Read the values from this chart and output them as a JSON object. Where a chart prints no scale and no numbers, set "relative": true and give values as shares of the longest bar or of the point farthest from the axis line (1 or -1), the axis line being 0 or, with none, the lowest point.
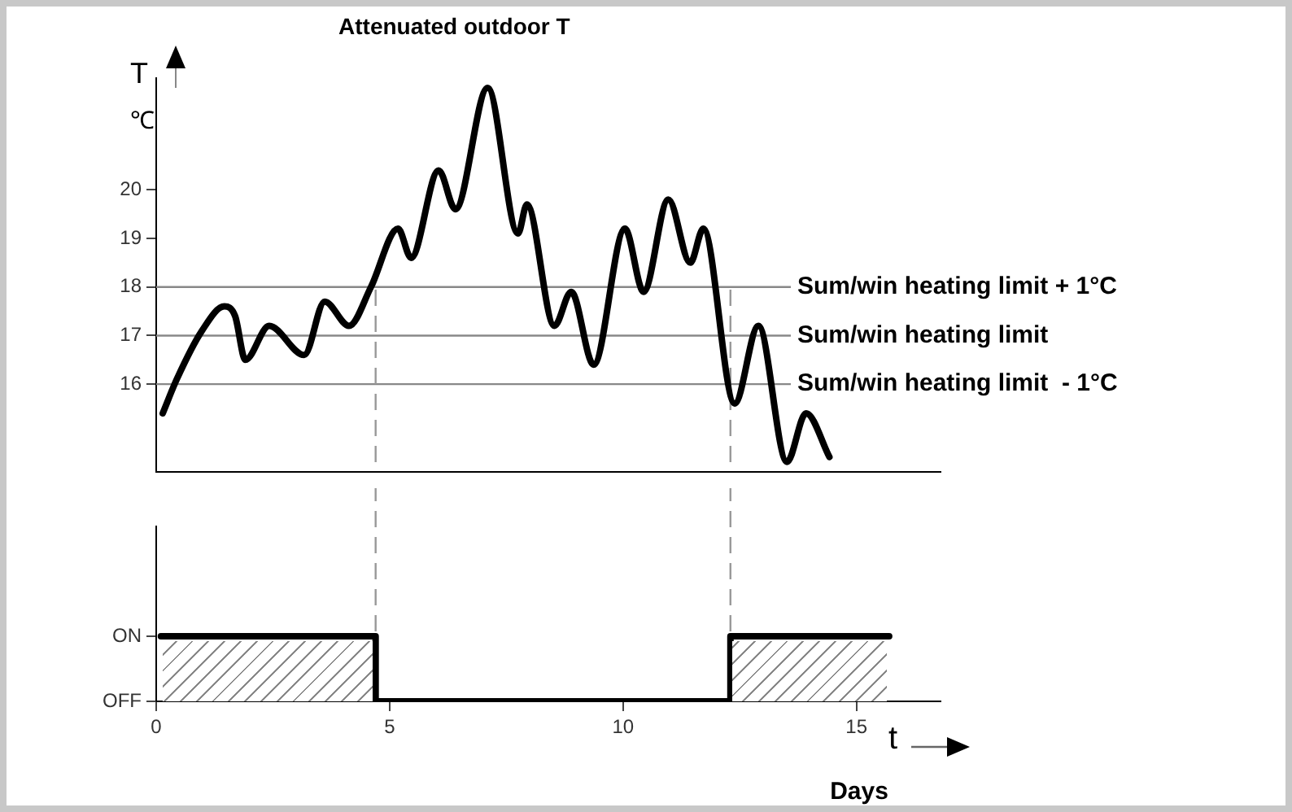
{
  "chart_data": [
    {
      "type": "line",
      "title": "Attenuated outdoor T",
      "ylabel": "T",
      "annotations": [
        "℃"
      ],
      "color": "#000000",
      "x": [
        0.14,
        0.44,
        0.98,
        1.46,
        1.69,
        1.91,
        2.42,
        3.17,
        3.61,
        4.13,
        4.6,
        5.18,
        5.46,
        6.05,
        6.41,
        7.1,
        7.75,
        7.94,
        8.53,
        8.89,
        9.37,
        10.04,
        10.44,
        10.97,
        11.44,
        11.72,
        12.39,
        12.9,
        13.51,
        13.92,
        14.42
      ],
      "values": [
        15.4,
        16.1,
        17.1,
        17.6,
        17.4,
        16.5,
        17.2,
        16.6,
        17.7,
        17.2,
        18,
        19.2,
        18.6,
        20.4,
        19.6,
        22.1,
        19.1,
        19.7,
        17.2,
        17.9,
        16.4,
        19.2,
        17.9,
        19.8,
        18.5,
        19.2,
        15.6,
        17.2,
        14.4,
        15.4,
        14.5
      ],
      "xlim": [
        0,
        16.8
      ],
      "ylim": [
        14.2,
        22.3
      ],
      "yticks": [
        16,
        17,
        18,
        19,
        20
      ],
      "tick_labels": "y",
      "grid": false,
      "legend": false,
      "ref_lines": [
        {
          "axis": "y",
          "value": 18,
          "label": "Sum/win heating limit + 1°C",
          "color": "#888888"
        },
        {
          "axis": "y",
          "value": 17,
          "label": "Sum/win heating limit",
          "color": "#888888"
        },
        {
          "axis": "y",
          "value": 16,
          "label": "Sum/win heating limit  - 1°C",
          "color": "#888888"
        },
        {
          "axis": "x",
          "value": 4.7,
          "color": "#999999",
          "line_style": "dashed"
        },
        {
          "axis": "x",
          "value": 12.3,
          "color": "#999999",
          "line_style": "dashed"
        }
      ]
    },
    {
      "type": "step",
      "xlabel": "Days",
      "annotations": [
        "t",
        "ON",
        "OFF"
      ],
      "relative": true,
      "color": "#000000",
      "x": [
        0.1,
        4.7,
        12.3,
        15.7
      ],
      "values": [
        1,
        0,
        1,
        1
      ],
      "xlim": [
        0,
        16.8
      ],
      "xticks": [
        0,
        5,
        10,
        15
      ],
      "grid": false,
      "legend": false,
      "ref_lines": [
        {
          "axis": "x",
          "value": 4.7,
          "color": "#999999",
          "line_style": "dashed"
        },
        {
          "axis": "x",
          "value": 12.3,
          "color": "#999999",
          "line_style": "dashed"
        }
      ]
    }
  ]
}
